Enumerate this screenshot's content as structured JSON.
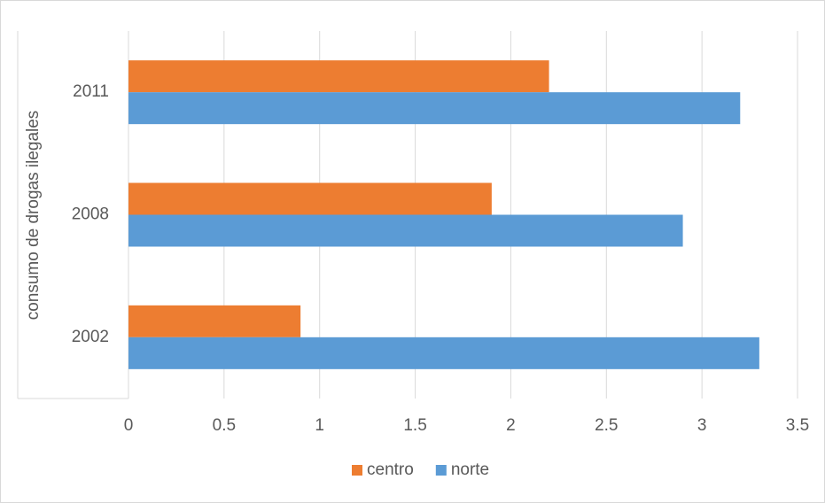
{
  "chart_data": {
    "type": "barh",
    "ylabel": "consumo de drogas ilegales",
    "categories": [
      "2002",
      "2008",
      "2011"
    ],
    "series": [
      {
        "name": "centro",
        "color": "#ed7d31",
        "values": [
          0.9,
          1.9,
          2.2
        ]
      },
      {
        "name": "norte",
        "color": "#5b9bd5",
        "values": [
          3.3,
          2.9,
          3.2
        ]
      }
    ],
    "xlim": [
      0,
      3.5
    ],
    "xticks": [
      0,
      0.5,
      1,
      1.5,
      2,
      2.5,
      3,
      3.5
    ],
    "grid": true,
    "legend": "bottom"
  }
}
